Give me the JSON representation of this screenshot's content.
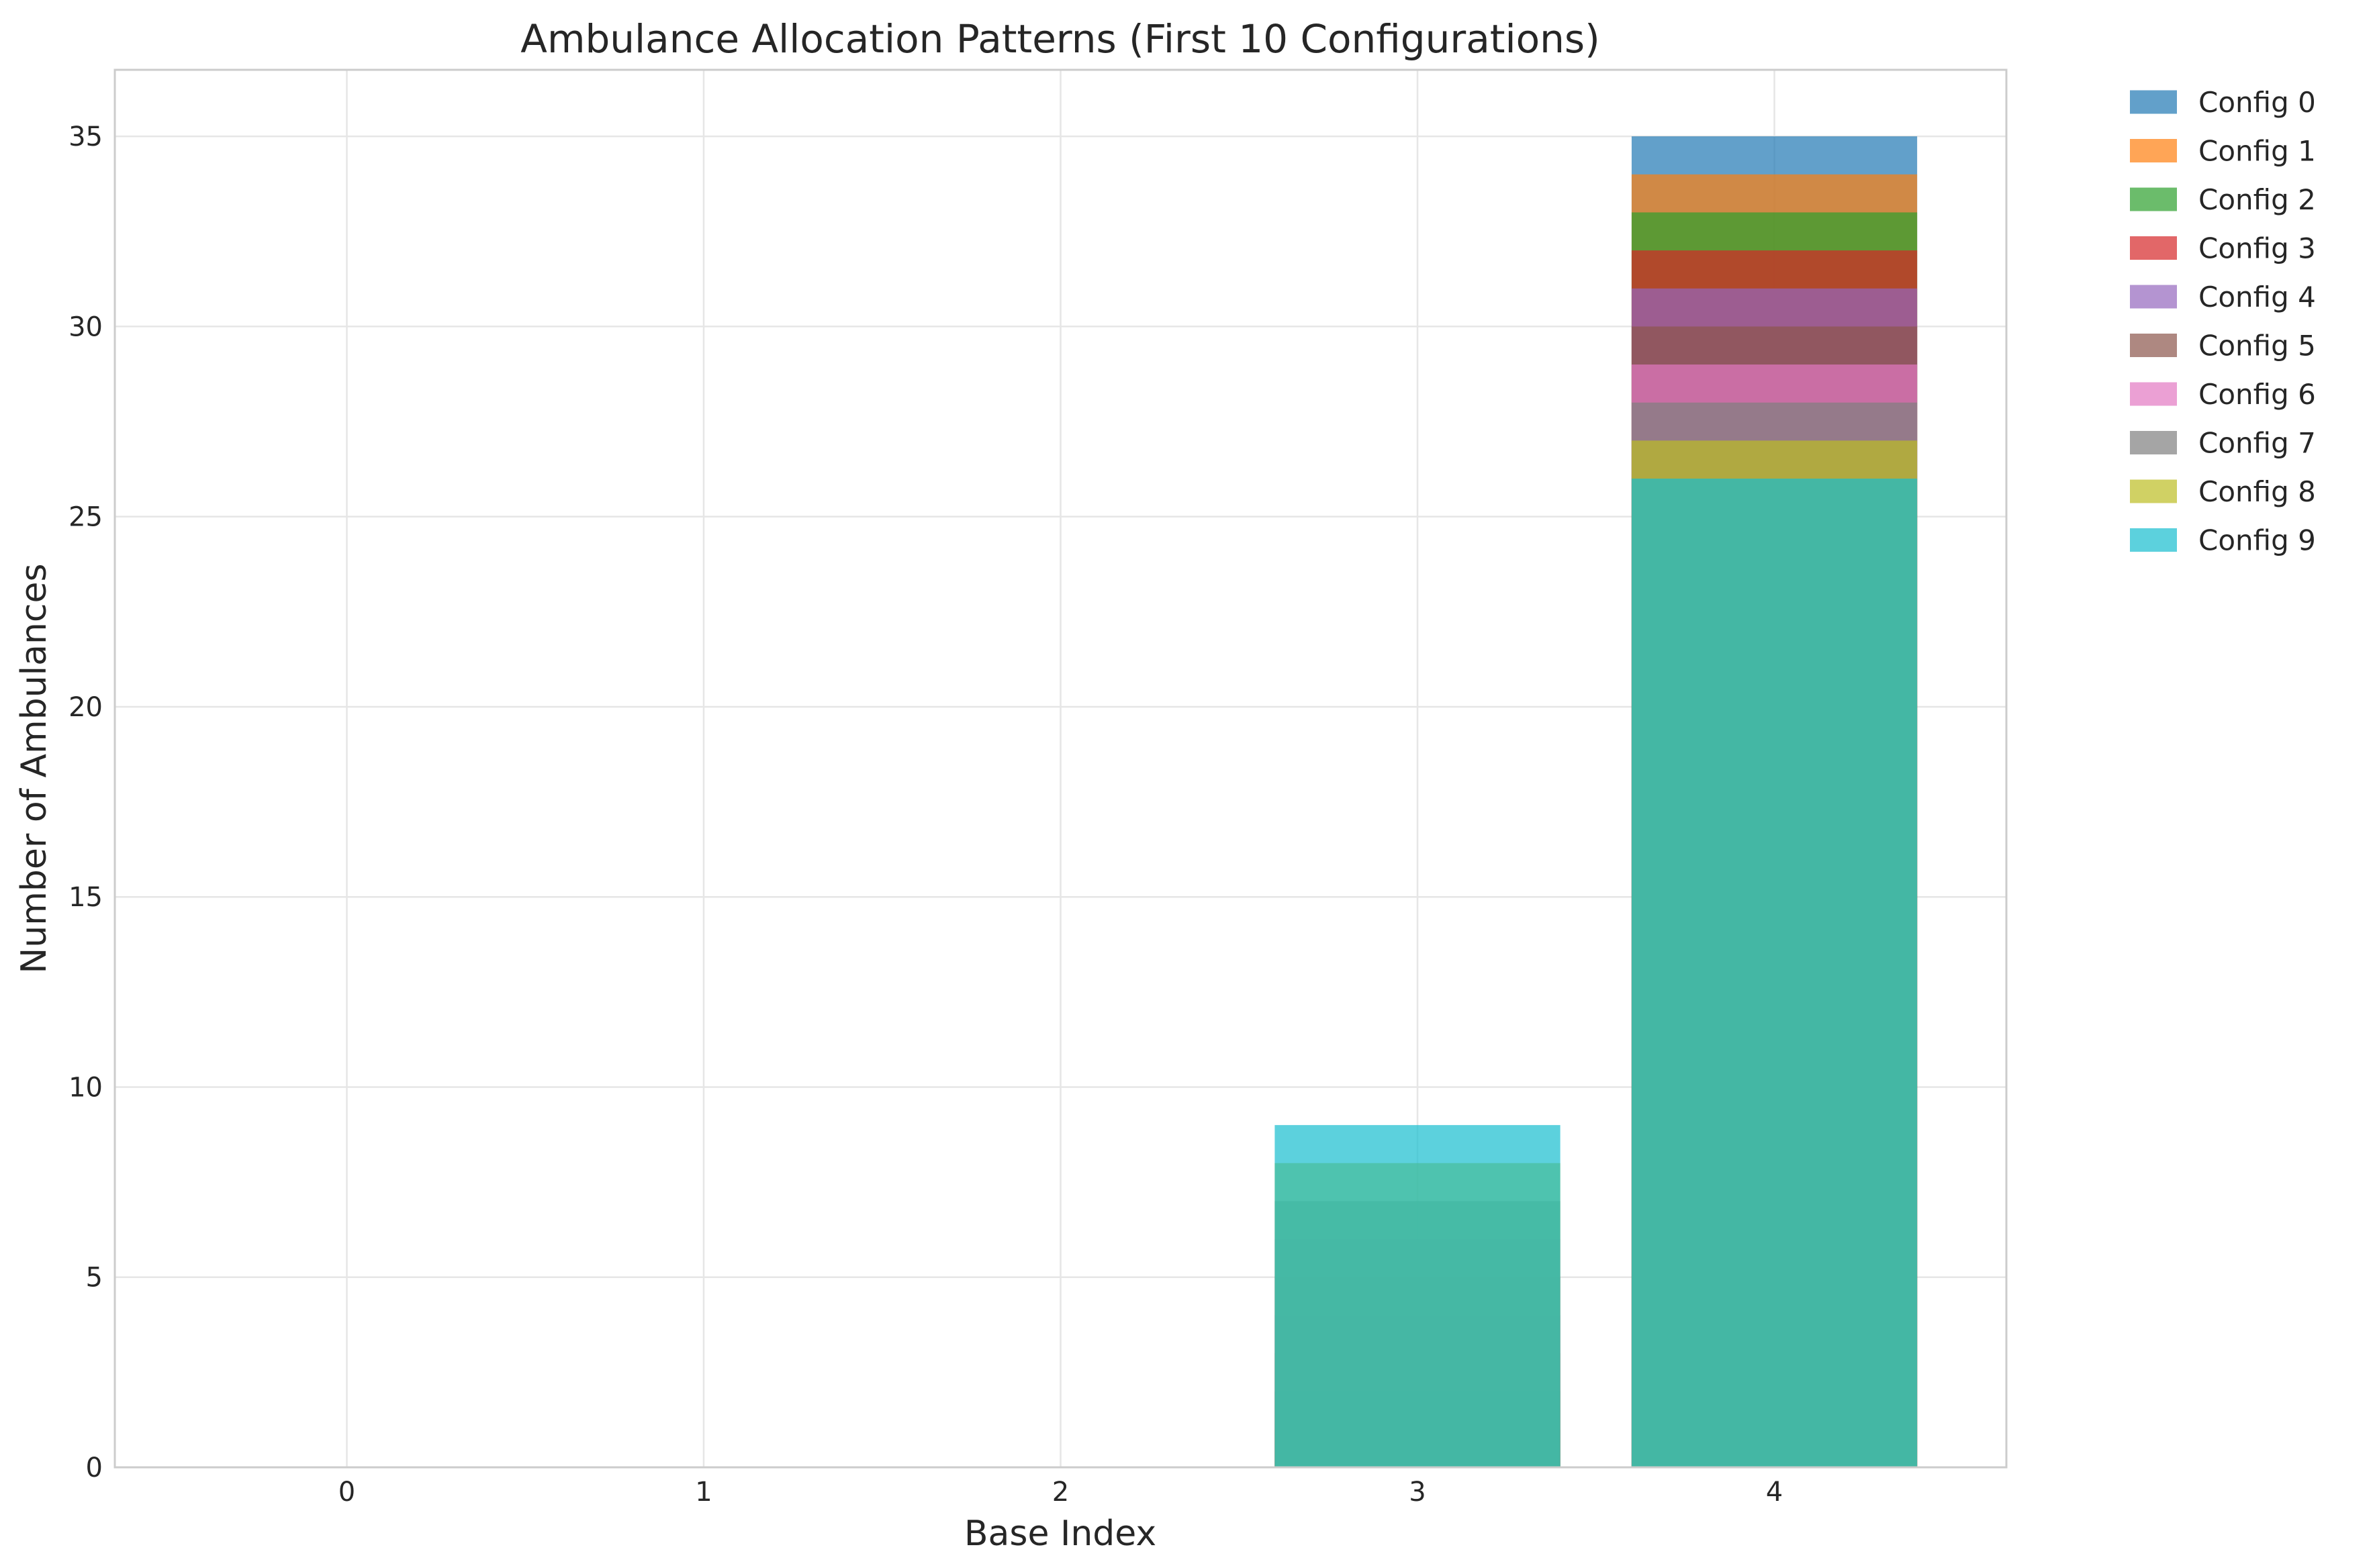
{
  "chart_data": {
    "type": "bar",
    "title": "Ambulance Allocation Patterns (First 10 Configurations)",
    "xlabel": "Base Index",
    "ylabel": "Number of Ambulances",
    "categories": [
      "0",
      "1",
      "2",
      "3",
      "4"
    ],
    "x_ticks": [
      "0",
      "1",
      "2",
      "3",
      "4"
    ],
    "y_ticks": [
      "0",
      "5",
      "10",
      "15",
      "20",
      "25",
      "30",
      "35"
    ],
    "ylim": [
      0,
      36.75
    ],
    "grid": true,
    "legend_position": "outside-top-right",
    "bar_mode": "overlaid",
    "bar_opacity": 0.7,
    "series": [
      {
        "name": "Config 0",
        "color": "#1f77b4",
        "values": [
          0,
          0,
          0,
          0,
          35
        ]
      },
      {
        "name": "Config 1",
        "color": "#ff7f0e",
        "values": [
          0,
          0,
          0,
          1,
          34
        ]
      },
      {
        "name": "Config 2",
        "color": "#2ca02c",
        "values": [
          0,
          0,
          0,
          2,
          33
        ]
      },
      {
        "name": "Config 3",
        "color": "#d62728",
        "values": [
          0,
          0,
          0,
          3,
          32
        ]
      },
      {
        "name": "Config 4",
        "color": "#9467bd",
        "values": [
          0,
          0,
          0,
          4,
          31
        ]
      },
      {
        "name": "Config 5",
        "color": "#8c564b",
        "values": [
          0,
          0,
          0,
          5,
          30
        ]
      },
      {
        "name": "Config 6",
        "color": "#e377c2",
        "values": [
          0,
          0,
          0,
          6,
          29
        ]
      },
      {
        "name": "Config 7",
        "color": "#7f7f7f",
        "values": [
          0,
          0,
          0,
          7,
          28
        ]
      },
      {
        "name": "Config 8",
        "color": "#bcbd22",
        "values": [
          0,
          0,
          0,
          8,
          27
        ]
      },
      {
        "name": "Config 9",
        "color": "#17becf",
        "values": [
          0,
          0,
          0,
          9,
          26
        ]
      }
    ]
  }
}
